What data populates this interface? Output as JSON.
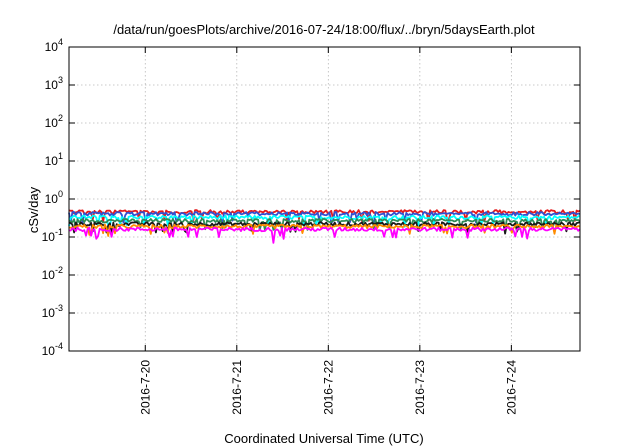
{
  "chart_data": {
    "type": "line",
    "title": "/data/run/goesPlots/archive/2016-07-24/18:00/flux/../bryn/5daysEarth.plot",
    "xlabel": "Coordinated Universal Time (UTC)",
    "ylabel": "cSv/day",
    "y_scale": "log",
    "ylim": [
      0.0001,
      10000
    ],
    "y_ticks": [
      {
        "value": 0.0001,
        "base": "10",
        "exp": "-4"
      },
      {
        "value": 0.001,
        "base": "10",
        "exp": "-3"
      },
      {
        "value": 0.01,
        "base": "10",
        "exp": "-2"
      },
      {
        "value": 0.1,
        "base": "10",
        "exp": "-1"
      },
      {
        "value": 1,
        "base": "10",
        "exp": "0"
      },
      {
        "value": 10,
        "base": "10",
        "exp": "1"
      },
      {
        "value": 100,
        "base": "10",
        "exp": "2"
      },
      {
        "value": 1000,
        "base": "10",
        "exp": "3"
      },
      {
        "value": 10000,
        "base": "10",
        "exp": "4"
      }
    ],
    "xlim": [
      "2016-07-19 04:00",
      "2016-07-24 18:00"
    ],
    "x_ticks": [
      "2016-7-20",
      "2016-7-21",
      "2016-7-22",
      "2016-7-23",
      "2016-7-24"
    ],
    "grid": true,
    "series": [
      {
        "color": "#e41a1c",
        "level": 0.46
      },
      {
        "color": "#3050d0",
        "level": 0.41
      },
      {
        "color": "#00ffff",
        "level": 0.33
      },
      {
        "color": "#2e8b57",
        "level": 0.27
      },
      {
        "color": "#1a1a1a",
        "level": 0.22
      },
      {
        "color": "#ff8c00",
        "level": 0.19
      },
      {
        "color": "#ff00ff",
        "level": 0.16
      }
    ]
  }
}
